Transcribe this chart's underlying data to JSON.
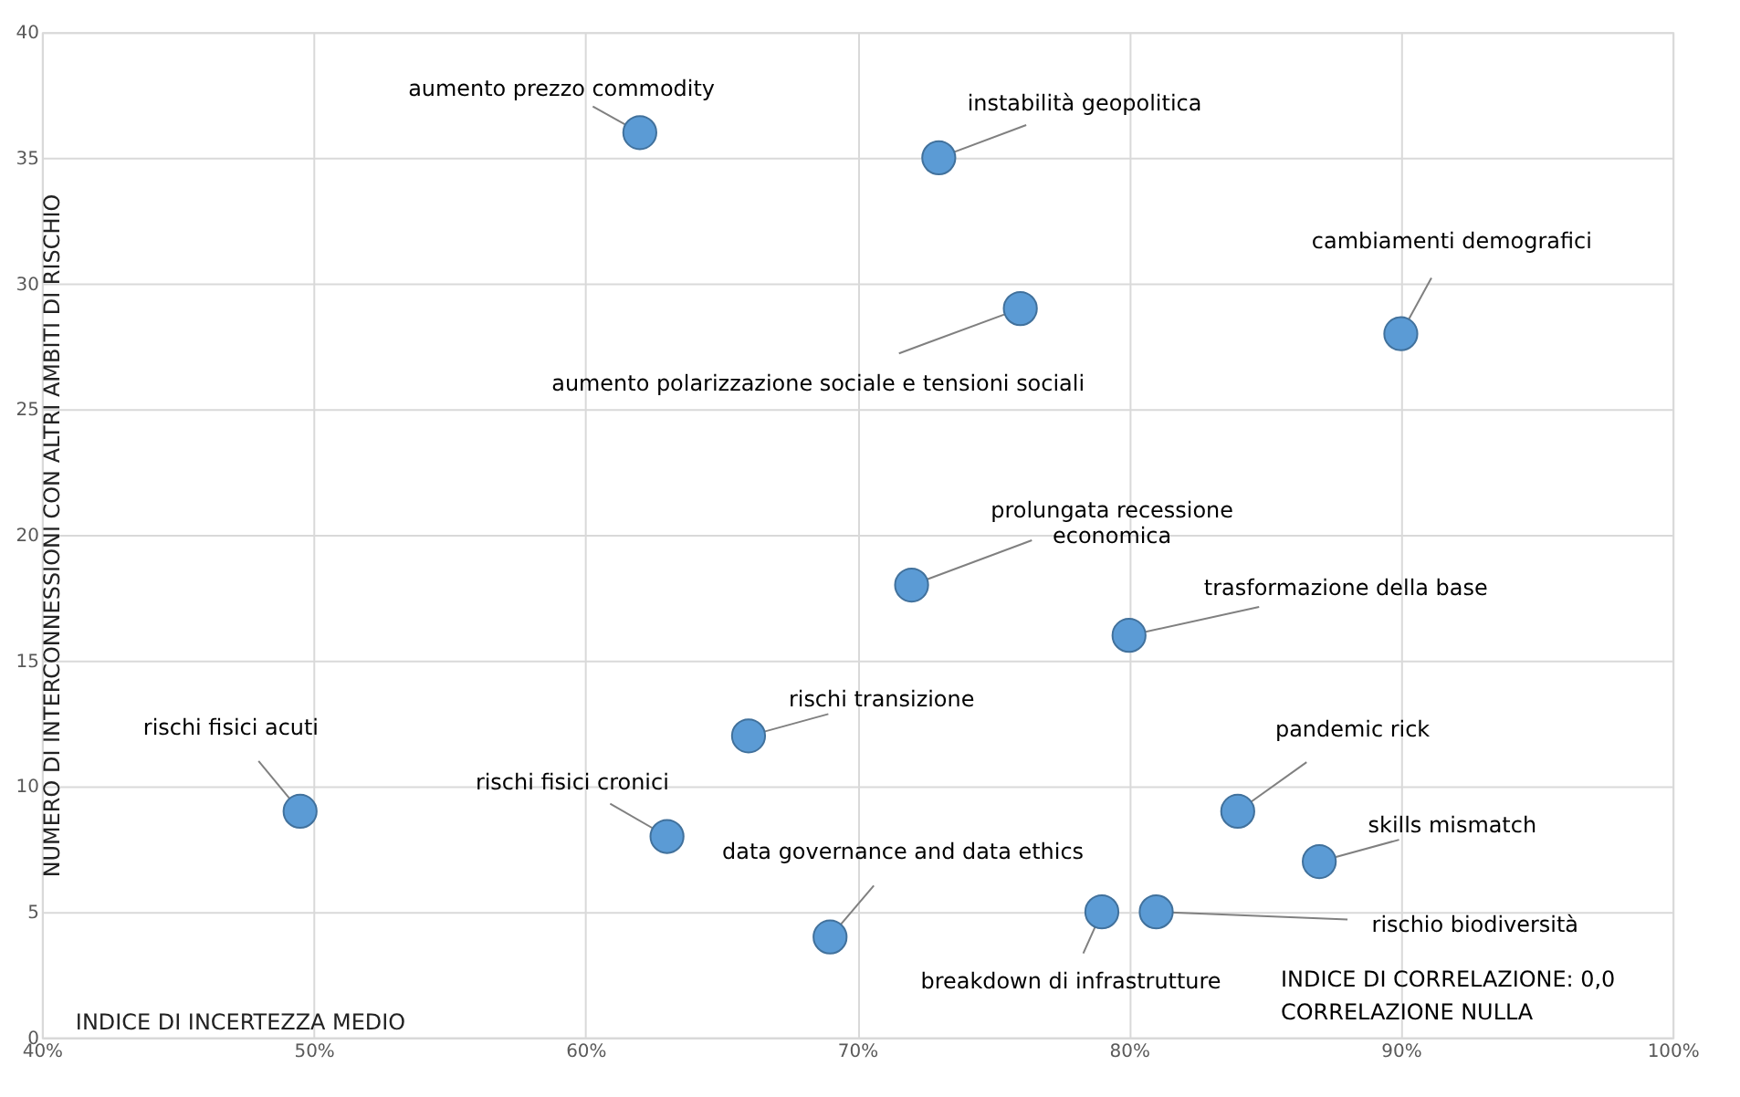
{
  "chart_data": {
    "type": "scatter",
    "xlabel": "INDICE DI INCERTEZZA MEDIO",
    "ylabel": "NUMERO DI INTERCONNESSIONI CON ALTRI AMBITI DI RISCHIO",
    "xlim": [
      40,
      100
    ],
    "xticks": [
      {
        "value": 40,
        "label": "40%"
      },
      {
        "value": 50,
        "label": "50%"
      },
      {
        "value": 60,
        "label": "60%"
      },
      {
        "value": 70,
        "label": "70%"
      },
      {
        "value": 80,
        "label": "80%"
      },
      {
        "value": 90,
        "label": "90%"
      },
      {
        "value": 100,
        "label": "100%"
      }
    ],
    "ylim": [
      0,
      40
    ],
    "yticks": [
      0,
      5,
      10,
      15,
      20,
      25,
      30,
      35,
      40
    ],
    "grid": true,
    "marker": "circle",
    "series": [
      {
        "color": "#5b9bd5",
        "x": [
          62,
          73,
          76,
          90,
          72,
          80,
          66,
          49.5,
          63,
          84,
          87,
          69,
          79,
          81
        ],
        "values": [
          36,
          35,
          29,
          28,
          18,
          16,
          12,
          9,
          8,
          9,
          7,
          4,
          5,
          5
        ]
      }
    ],
    "annotations": [
      {
        "text": "aumento prezzo commodity",
        "x": 62,
        "y": 36
      },
      {
        "text": "instabilità geopolitica",
        "x": 73,
        "y": 35
      },
      {
        "text": "aumento polarizzazione sociale e tensioni sociali",
        "x": 76,
        "y": 29
      },
      {
        "text": "cambiamenti demografici",
        "x": 90,
        "y": 28
      },
      {
        "text": "prolungata recessione economica",
        "x": 72,
        "y": 18
      },
      {
        "text": "trasformazione della base",
        "x": 80,
        "y": 16
      },
      {
        "text": "rischi transizione",
        "x": 66,
        "y": 12
      },
      {
        "text": "rischi fisici acuti",
        "x": 49.5,
        "y": 9
      },
      {
        "text": "rischi fisici cronici",
        "x": 63,
        "y": 8
      },
      {
        "text": "pandemic rick",
        "x": 84,
        "y": 9
      },
      {
        "text": "skills mismatch",
        "x": 87,
        "y": 7
      },
      {
        "text": "data governance and data ethics",
        "x": 69,
        "y": 4
      },
      {
        "text": "breakdown di infrastrutture",
        "x": 79,
        "y": 5
      },
      {
        "text": "rischio biodiversità",
        "x": 81,
        "y": 5
      },
      "INDICE DI CORRELAZIONE: 0,0",
      "CORRELAZIONE NULLA"
    ]
  }
}
